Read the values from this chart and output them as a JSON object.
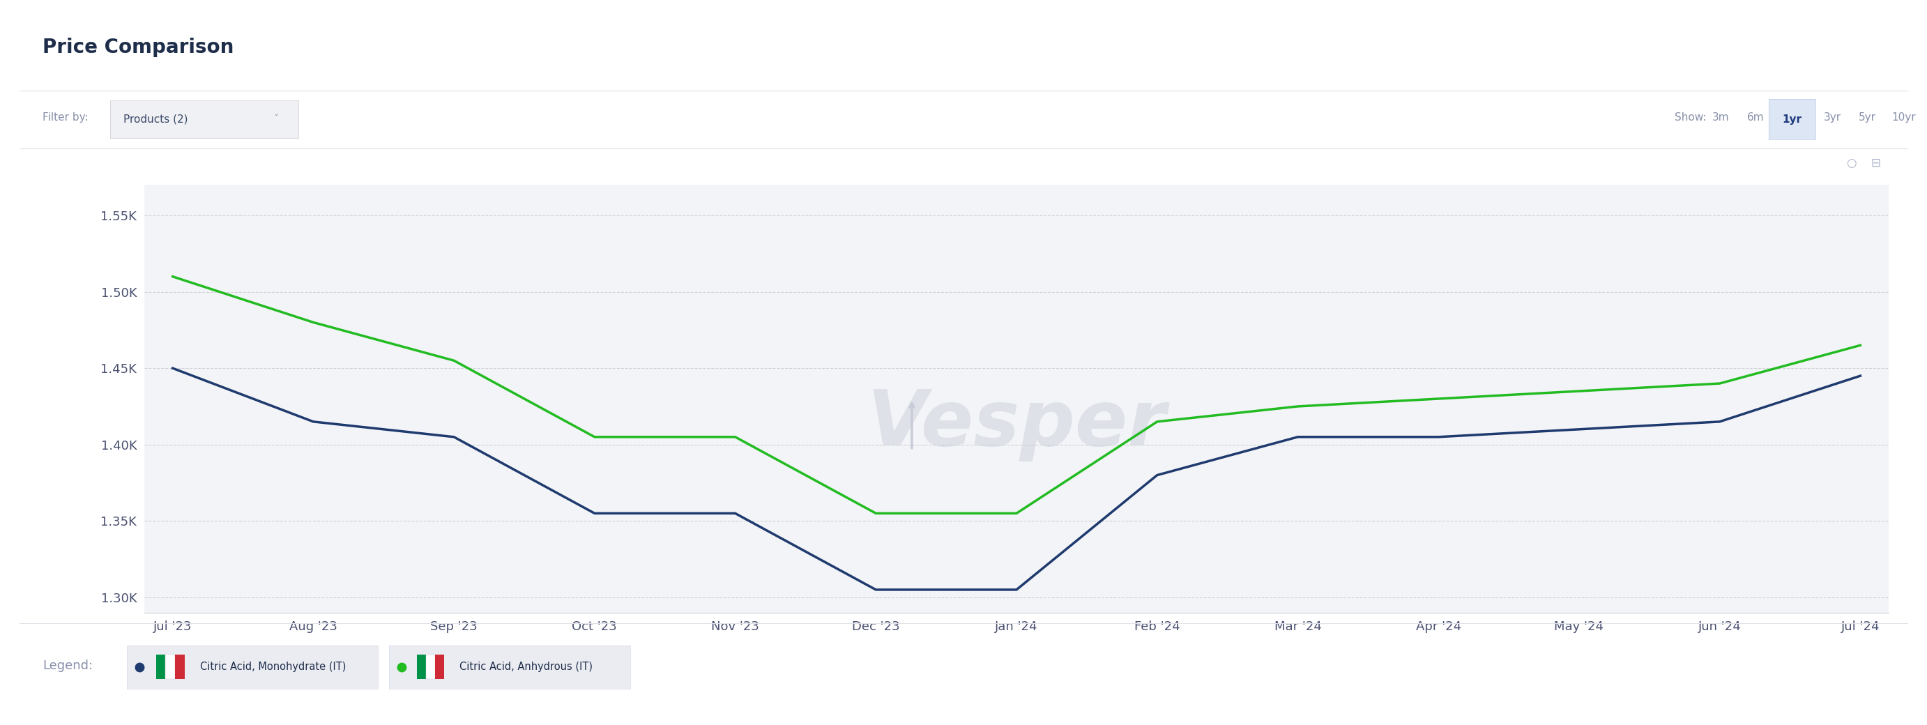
{
  "title": "Price Comparison",
  "filter_label": "Filter by:",
  "filter_value": "Products (2)",
  "show_label": "Show:",
  "show_options": [
    "3m",
    "6m",
    "1yr",
    "3yr",
    "5yr",
    "10yr"
  ],
  "show_active": "1yr",
  "x_labels": [
    "Jul '23",
    "Aug '23",
    "Sep '23",
    "Oct '23",
    "Nov '23",
    "Dec '23",
    "Jan '24",
    "Feb '24",
    "Mar '24",
    "Apr '24",
    "May '24",
    "Jun '24",
    "Jul '24"
  ],
  "monohydrate_values": [
    1450,
    1415,
    1405,
    1355,
    1355,
    1305,
    1305,
    1380,
    1405,
    1405,
    1410,
    1415,
    1445
  ],
  "anhydrous_values": [
    1510,
    1480,
    1455,
    1405,
    1405,
    1355,
    1355,
    1415,
    1425,
    1430,
    1435,
    1440,
    1465
  ],
  "ylim": [
    1290,
    1570
  ],
  "yticks": [
    1300,
    1350,
    1400,
    1450,
    1500,
    1550
  ],
  "ytick_labels": [
    "1.30K",
    "1.35K",
    "1.40K",
    "1.45K",
    "1.50K",
    "1.55K"
  ],
  "monohydrate_color": "#1e3a6e",
  "anhydrous_color": "#22bb22",
  "bg_color": "#f3f4f7",
  "plot_bg_color": "#f3f4f7",
  "grid_color": "#d0d0d8",
  "legend_label_mono": "Citric Acid, Monohydrate (IT)",
  "legend_label_anhy": "Citric Acid, Anhydrous (IT)",
  "legend_prefix": "Legend:",
  "vesper_watermark": "Vesper",
  "line_width": 2.5,
  "title_fontsize": 20,
  "tick_fontsize": 13,
  "legend_fontsize": 13,
  "outer_bg": "#ffffff",
  "header_bg": "#ffffff",
  "panel_bg": "#f3f4f7",
  "border_color": "#e0e0e8"
}
